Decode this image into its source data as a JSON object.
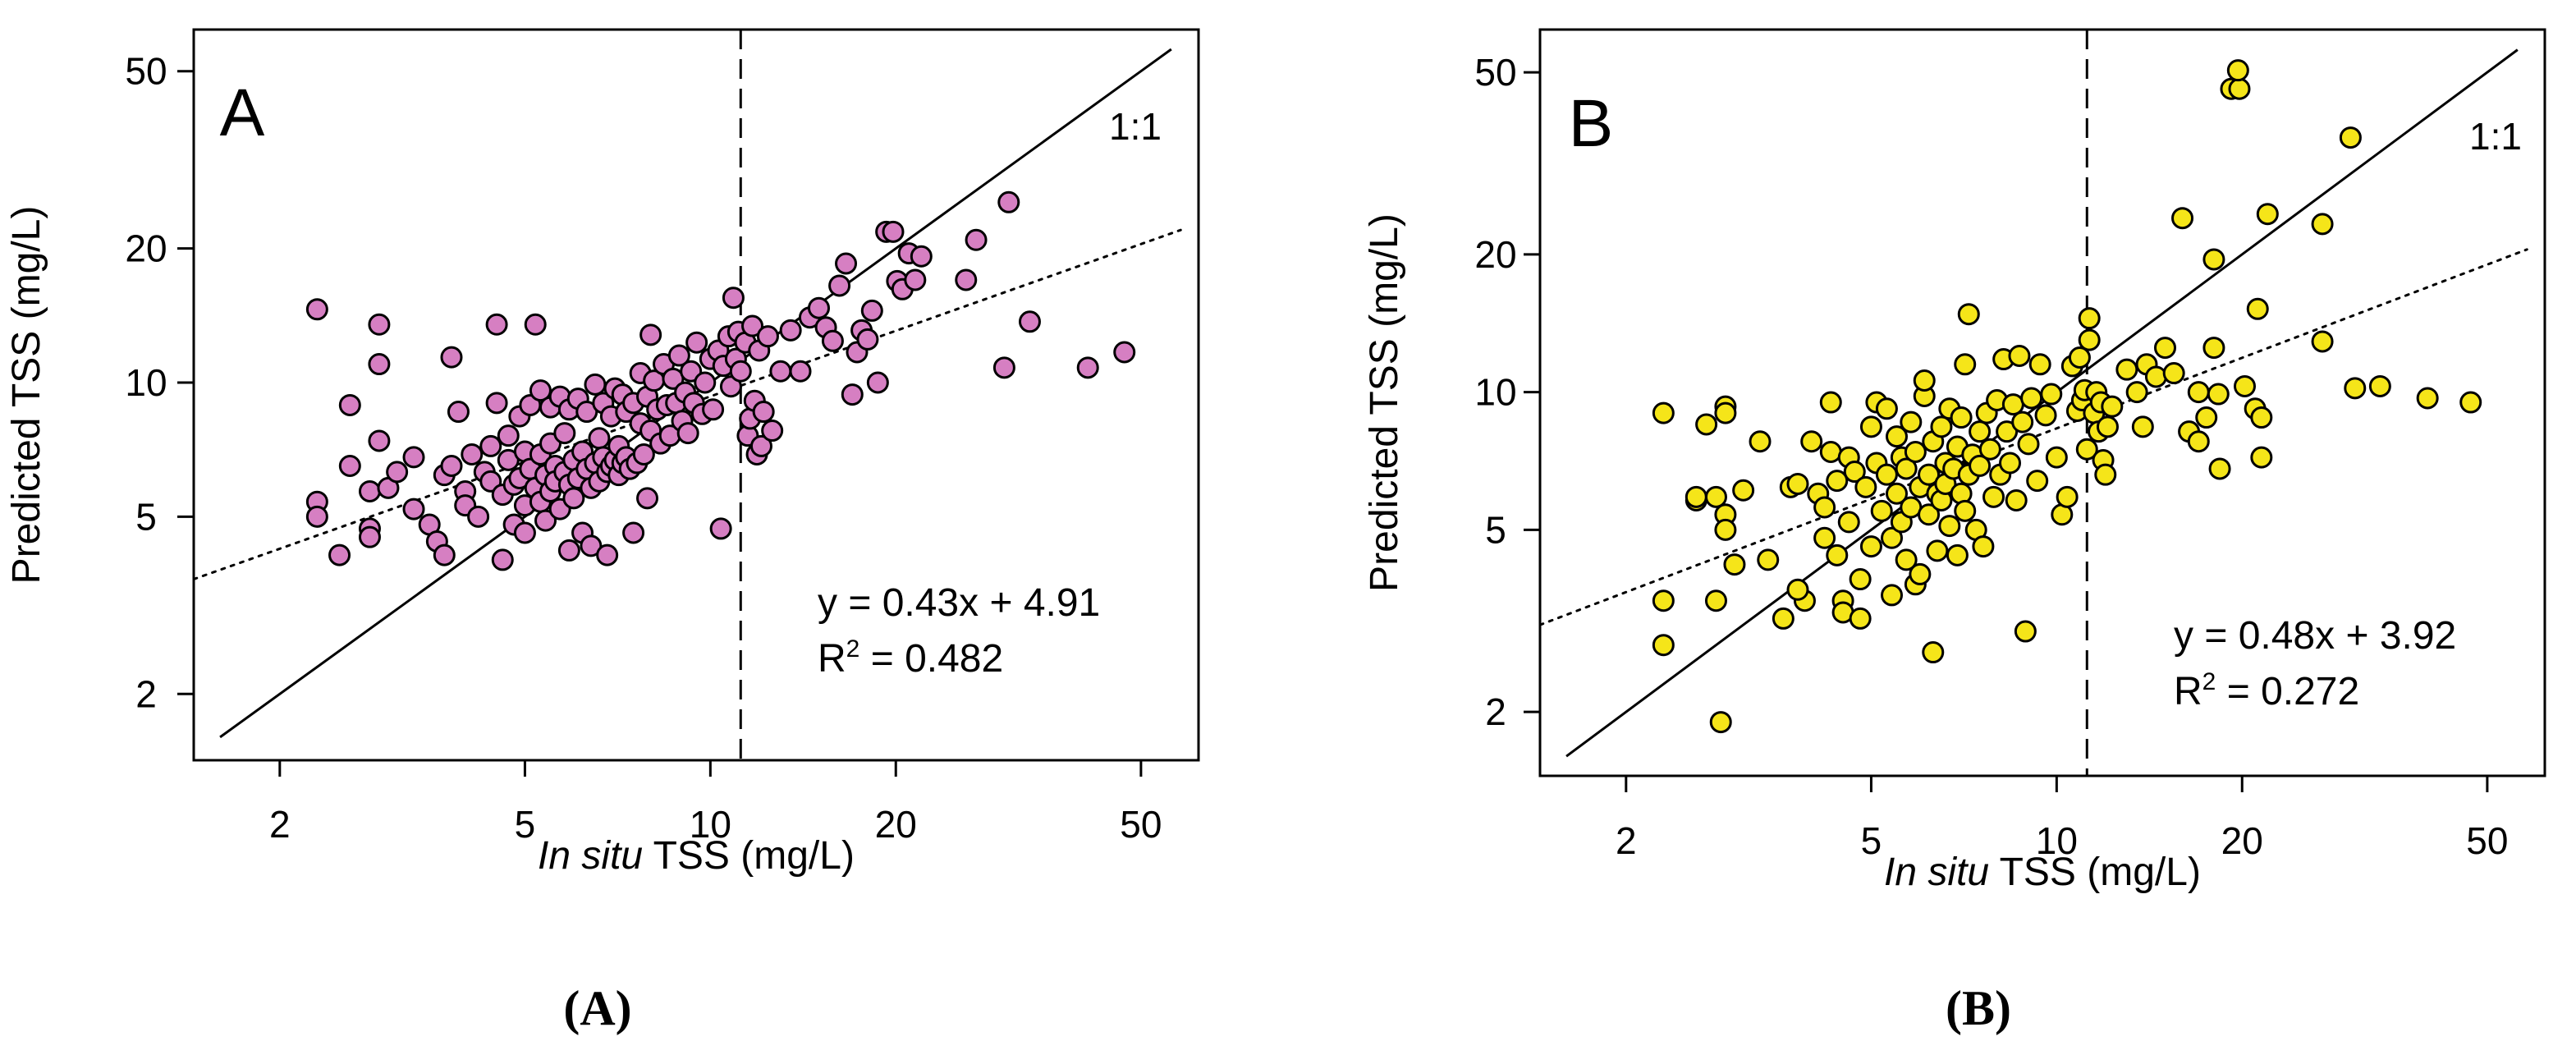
{
  "figure_captions": [
    "(A)",
    "(B)"
  ],
  "chart_data": [
    {
      "type": "scatter",
      "panel_label": "A",
      "xlabel_italic": "In situ",
      "xlabel_rest": " TSS (mg/L)",
      "ylabel": "Predicted TSS (mg/L)",
      "xscale": "log",
      "yscale": "log",
      "xlim": [
        1.45,
        62
      ],
      "ylim": [
        1.42,
        62
      ],
      "xticks": [
        2,
        5,
        10,
        20,
        50
      ],
      "yticks": [
        2,
        5,
        10,
        20,
        50
      ],
      "marker_color": "#d67fc2",
      "identity_label": "1:1",
      "threshold_x": 11.2,
      "fit": {
        "equation": "y = 0.43x + 4.91",
        "r2_prefix": "R",
        "r2_sup": "2",
        "r2_rest": " = 0.482",
        "x_start": 1.45,
        "x_end": 58,
        "y_start": 3.62,
        "y_end": 22.0
      },
      "identity_line": {
        "x_start": 1.6,
        "x_end": 56
      },
      "points": [
        [
          2.3,
          14.6
        ],
        [
          2.3,
          5.4
        ],
        [
          2.3,
          5.0
        ],
        [
          2.5,
          4.1
        ],
        [
          2.6,
          8.9
        ],
        [
          2.6,
          6.5
        ],
        [
          2.8,
          5.7
        ],
        [
          2.8,
          4.7
        ],
        [
          2.8,
          4.5
        ],
        [
          2.9,
          13.5
        ],
        [
          2.9,
          11.0
        ],
        [
          2.9,
          7.4
        ],
        [
          3.0,
          5.8
        ],
        [
          3.1,
          6.3
        ],
        [
          3.3,
          6.8
        ],
        [
          3.3,
          5.2
        ],
        [
          3.5,
          4.8
        ],
        [
          3.6,
          4.4
        ],
        [
          3.7,
          6.2
        ],
        [
          3.7,
          4.1
        ],
        [
          3.8,
          11.4
        ],
        [
          3.8,
          6.5
        ],
        [
          3.9,
          8.6
        ],
        [
          4.0,
          5.7
        ],
        [
          4.0,
          5.3
        ],
        [
          4.1,
          6.9
        ],
        [
          4.2,
          5.0
        ],
        [
          4.3,
          6.3
        ],
        [
          4.4,
          7.2
        ],
        [
          4.4,
          6.0
        ],
        [
          4.5,
          13.5
        ],
        [
          4.5,
          9.0
        ],
        [
          4.6,
          5.6
        ],
        [
          4.6,
          4.0
        ],
        [
          4.7,
          7.6
        ],
        [
          4.7,
          6.7
        ],
        [
          4.8,
          5.9
        ],
        [
          4.8,
          4.8
        ],
        [
          4.9,
          8.4
        ],
        [
          4.9,
          6.1
        ],
        [
          5.0,
          7.0
        ],
        [
          5.0,
          5.3
        ],
        [
          5.0,
          4.6
        ],
        [
          5.1,
          8.9
        ],
        [
          5.1,
          6.4
        ],
        [
          5.2,
          13.5
        ],
        [
          5.2,
          5.8
        ],
        [
          5.3,
          9.6
        ],
        [
          5.3,
          6.9
        ],
        [
          5.3,
          5.4
        ],
        [
          5.4,
          6.2
        ],
        [
          5.4,
          4.9
        ],
        [
          5.5,
          8.8
        ],
        [
          5.5,
          7.3
        ],
        [
          5.5,
          5.7
        ],
        [
          5.6,
          6.5
        ],
        [
          5.6,
          6.0
        ],
        [
          5.7,
          9.3
        ],
        [
          5.7,
          5.2
        ],
        [
          5.8,
          7.7
        ],
        [
          5.8,
          6.3
        ],
        [
          5.9,
          8.7
        ],
        [
          5.9,
          5.9
        ],
        [
          5.9,
          4.2
        ],
        [
          6.0,
          6.7
        ],
        [
          6.0,
          5.5
        ],
        [
          6.1,
          9.2
        ],
        [
          6.1,
          6.1
        ],
        [
          6.2,
          7.0
        ],
        [
          6.2,
          4.6
        ],
        [
          6.3,
          8.6
        ],
        [
          6.3,
          6.4
        ],
        [
          6.4,
          5.8
        ],
        [
          6.4,
          4.3
        ],
        [
          6.5,
          9.9
        ],
        [
          6.5,
          6.6
        ],
        [
          6.6,
          7.5
        ],
        [
          6.6,
          6.0
        ],
        [
          6.7,
          9.0
        ],
        [
          6.7,
          6.8
        ],
        [
          6.8,
          6.3
        ],
        [
          6.8,
          4.1
        ],
        [
          6.9,
          8.4
        ],
        [
          6.9,
          6.5
        ],
        [
          7.0,
          9.7
        ],
        [
          7.0,
          6.7
        ],
        [
          7.1,
          7.2
        ],
        [
          7.1,
          6.2
        ],
        [
          7.2,
          9.4
        ],
        [
          7.2,
          6.6
        ],
        [
          7.3,
          8.6
        ],
        [
          7.3,
          6.8
        ],
        [
          7.4,
          6.4
        ],
        [
          7.5,
          9.0
        ],
        [
          7.5,
          4.6
        ],
        [
          7.6,
          6.6
        ],
        [
          7.7,
          10.5
        ],
        [
          7.7,
          8.1
        ],
        [
          7.8,
          6.9
        ],
        [
          7.9,
          9.3
        ],
        [
          7.9,
          5.5
        ],
        [
          8.0,
          12.8
        ],
        [
          8.0,
          7.8
        ],
        [
          8.1,
          10.1
        ],
        [
          8.2,
          8.7
        ],
        [
          8.3,
          7.3
        ],
        [
          8.4,
          11.0
        ],
        [
          8.5,
          8.9
        ],
        [
          8.6,
          7.6
        ],
        [
          8.7,
          10.2
        ],
        [
          8.8,
          9.0
        ],
        [
          8.9,
          11.5
        ],
        [
          9.0,
          8.2
        ],
        [
          9.1,
          9.5
        ],
        [
          9.2,
          7.7
        ],
        [
          9.3,
          10.6
        ],
        [
          9.4,
          9.0
        ],
        [
          9.5,
          12.3
        ],
        [
          9.7,
          8.5
        ],
        [
          9.8,
          10.0
        ],
        [
          10.0,
          11.3
        ],
        [
          10.1,
          8.7
        ],
        [
          10.3,
          11.8
        ],
        [
          10.4,
          4.7
        ],
        [
          10.5,
          10.9
        ],
        [
          10.7,
          12.7
        ],
        [
          10.8,
          9.8
        ],
        [
          10.9,
          15.5
        ],
        [
          11.0,
          11.3
        ],
        [
          11.1,
          13.0
        ],
        [
          11.2,
          10.6
        ],
        [
          11.4,
          12.3
        ],
        [
          11.5,
          7.6
        ],
        [
          11.6,
          8.3
        ],
        [
          11.7,
          13.4
        ],
        [
          11.8,
          9.1
        ],
        [
          11.9,
          6.9
        ],
        [
          12.0,
          11.8
        ],
        [
          12.1,
          7.2
        ],
        [
          12.2,
          8.6
        ],
        [
          12.4,
          12.7
        ],
        [
          12.6,
          7.8
        ],
        [
          13.0,
          10.6
        ],
        [
          13.5,
          13.1
        ],
        [
          14.0,
          10.6
        ],
        [
          14.5,
          14.0
        ],
        [
          15.0,
          14.7
        ],
        [
          15.4,
          13.3
        ],
        [
          15.8,
          12.4
        ],
        [
          16.2,
          16.5
        ],
        [
          16.6,
          18.5
        ],
        [
          17.0,
          9.4
        ],
        [
          17.3,
          11.7
        ],
        [
          17.6,
          13.1
        ],
        [
          18.0,
          12.5
        ],
        [
          18.3,
          14.5
        ],
        [
          18.7,
          10.0
        ],
        [
          19.3,
          21.8
        ],
        [
          19.8,
          21.8
        ],
        [
          20.1,
          16.9
        ],
        [
          20.5,
          16.2
        ],
        [
          21.0,
          19.5
        ],
        [
          21.5,
          17.0
        ],
        [
          22.0,
          19.2
        ],
        [
          26.0,
          17.0
        ],
        [
          27.0,
          20.9
        ],
        [
          30.5,
          25.4
        ],
        [
          30.0,
          10.8
        ],
        [
          33.0,
          13.7
        ],
        [
          41.0,
          10.8
        ],
        [
          47.0,
          11.7
        ]
      ]
    },
    {
      "type": "scatter",
      "panel_label": "B",
      "xlabel_italic": "In situ",
      "xlabel_rest": " TSS (mg/L)",
      "ylabel": "Predicted TSS (mg/L)",
      "xscale": "log",
      "yscale": "log",
      "xlim": [
        1.45,
        62
      ],
      "ylim": [
        1.45,
        62
      ],
      "xticks": [
        2,
        5,
        10,
        20,
        50
      ],
      "yticks": [
        2,
        5,
        10,
        20,
        50
      ],
      "marker_color": "#f5e519",
      "identity_label": "1:1",
      "threshold_x": 11.2,
      "fit": {
        "equation": "y = 0.48x + 3.92",
        "r2_prefix": "R",
        "r2_sup": "2",
        "r2_rest": " = 0.272",
        "x_start": 1.45,
        "x_end": 58,
        "y_start": 3.1,
        "y_end": 20.5
      },
      "identity_line": {
        "x_start": 1.6,
        "x_end": 56
      },
      "points": [
        [
          2.3,
          9.0
        ],
        [
          2.3,
          3.5
        ],
        [
          2.3,
          2.8
        ],
        [
          2.6,
          5.8
        ],
        [
          2.6,
          5.9
        ],
        [
          2.7,
          8.5
        ],
        [
          2.8,
          5.9
        ],
        [
          2.8,
          3.5
        ],
        [
          2.9,
          9.3
        ],
        [
          2.9,
          9.0
        ],
        [
          2.9,
          5.4
        ],
        [
          2.9,
          5.0
        ],
        [
          2.85,
          1.9
        ],
        [
          3.1,
          6.1
        ],
        [
          3.0,
          4.2
        ],
        [
          3.3,
          7.8
        ],
        [
          3.4,
          4.3
        ],
        [
          3.6,
          3.2
        ],
        [
          3.7,
          6.2
        ],
        [
          3.8,
          6.3
        ],
        [
          3.9,
          3.5
        ],
        [
          3.8,
          3.7
        ],
        [
          4.0,
          7.8
        ],
        [
          4.1,
          6.0
        ],
        [
          4.2,
          5.6
        ],
        [
          4.2,
          4.8
        ],
        [
          4.3,
          9.5
        ],
        [
          4.3,
          7.4
        ],
        [
          4.4,
          6.4
        ],
        [
          4.4,
          4.4
        ],
        [
          4.5,
          3.5
        ],
        [
          4.5,
          3.3
        ],
        [
          4.6,
          7.2
        ],
        [
          4.6,
          5.2
        ],
        [
          4.7,
          6.7
        ],
        [
          4.8,
          3.9
        ],
        [
          4.8,
          3.2
        ],
        [
          4.9,
          6.2
        ],
        [
          5.0,
          4.6
        ],
        [
          5.0,
          8.4
        ],
        [
          5.1,
          7.0
        ],
        [
          5.1,
          9.5
        ],
        [
          5.2,
          5.5
        ],
        [
          5.3,
          9.2
        ],
        [
          5.3,
          6.6
        ],
        [
          5.4,
          4.8
        ],
        [
          5.4,
          3.6
        ],
        [
          5.5,
          8.0
        ],
        [
          5.5,
          6.0
        ],
        [
          5.6,
          7.2
        ],
        [
          5.6,
          5.2
        ],
        [
          5.7,
          4.3
        ],
        [
          5.7,
          6.8
        ],
        [
          5.8,
          8.6
        ],
        [
          5.8,
          5.6
        ],
        [
          5.9,
          3.8
        ],
        [
          5.9,
          7.4
        ],
        [
          6.0,
          6.2
        ],
        [
          6.0,
          4.0
        ],
        [
          6.1,
          9.8
        ],
        [
          6.1,
          10.6
        ],
        [
          6.2,
          6.6
        ],
        [
          6.2,
          5.4
        ],
        [
          6.3,
          7.8
        ],
        [
          6.3,
          2.7
        ],
        [
          6.4,
          6.0
        ],
        [
          6.4,
          4.5
        ],
        [
          6.5,
          8.4
        ],
        [
          6.5,
          5.8
        ],
        [
          6.6,
          7.0
        ],
        [
          6.6,
          6.3
        ],
        [
          6.7,
          9.2
        ],
        [
          6.7,
          5.1
        ],
        [
          6.8,
          6.8
        ],
        [
          6.9,
          4.4
        ],
        [
          6.9,
          7.6
        ],
        [
          7.0,
          6.0
        ],
        [
          7.0,
          8.8
        ],
        [
          7.1,
          5.5
        ],
        [
          7.1,
          11.5
        ],
        [
          7.2,
          14.8
        ],
        [
          7.2,
          6.6
        ],
        [
          7.3,
          7.3
        ],
        [
          7.4,
          5.0
        ],
        [
          7.5,
          8.2
        ],
        [
          7.5,
          6.9
        ],
        [
          7.6,
          4.6
        ],
        [
          7.7,
          9.0
        ],
        [
          7.8,
          7.5
        ],
        [
          7.9,
          5.9
        ],
        [
          8.0,
          9.6
        ],
        [
          8.1,
          6.6
        ],
        [
          8.2,
          11.8
        ],
        [
          8.3,
          8.2
        ],
        [
          8.4,
          7.0
        ],
        [
          8.5,
          9.4
        ],
        [
          8.6,
          5.8
        ],
        [
          8.7,
          12.0
        ],
        [
          8.8,
          8.6
        ],
        [
          8.9,
          3.0
        ],
        [
          9.0,
          7.7
        ],
        [
          9.1,
          9.7
        ],
        [
          9.3,
          6.4
        ],
        [
          9.4,
          11.5
        ],
        [
          9.6,
          8.9
        ],
        [
          9.8,
          9.9
        ],
        [
          10.0,
          7.2
        ],
        [
          10.2,
          5.4
        ],
        [
          10.4,
          5.9
        ],
        [
          10.6,
          11.4
        ],
        [
          10.8,
          9.1
        ],
        [
          10.9,
          11.9
        ],
        [
          11.0,
          9.6
        ],
        [
          11.1,
          10.1
        ],
        [
          11.2,
          7.5
        ],
        [
          11.3,
          14.5
        ],
        [
          11.3,
          13.0
        ],
        [
          11.5,
          9.0
        ],
        [
          11.6,
          10.0
        ],
        [
          11.7,
          8.2
        ],
        [
          11.8,
          9.5
        ],
        [
          11.9,
          7.1
        ],
        [
          12.0,
          6.6
        ],
        [
          12.1,
          8.4
        ],
        [
          12.3,
          9.3
        ],
        [
          13.0,
          11.2
        ],
        [
          13.5,
          10.0
        ],
        [
          13.8,
          8.4
        ],
        [
          14.0,
          11.5
        ],
        [
          14.5,
          10.8
        ],
        [
          15.0,
          12.5
        ],
        [
          15.5,
          11.0
        ],
        [
          16.0,
          24.0
        ],
        [
          16.4,
          8.2
        ],
        [
          17.0,
          10.0
        ],
        [
          17.0,
          7.8
        ],
        [
          17.5,
          8.8
        ],
        [
          18.0,
          12.5
        ],
        [
          18.0,
          19.5
        ],
        [
          18.3,
          9.9
        ],
        [
          18.4,
          6.8
        ],
        [
          19.2,
          46.0
        ],
        [
          19.8,
          46.0
        ],
        [
          19.7,
          50.5
        ],
        [
          20.2,
          10.3
        ],
        [
          21.0,
          9.2
        ],
        [
          21.2,
          15.2
        ],
        [
          21.5,
          8.8
        ],
        [
          21.5,
          7.2
        ],
        [
          22.0,
          24.5
        ],
        [
          27.0,
          23.3
        ],
        [
          27.0,
          12.9
        ],
        [
          30.0,
          36.0
        ],
        [
          30.5,
          10.2
        ],
        [
          33.5,
          10.3
        ],
        [
          40.0,
          9.7
        ],
        [
          47.0,
          9.5
        ]
      ]
    }
  ]
}
